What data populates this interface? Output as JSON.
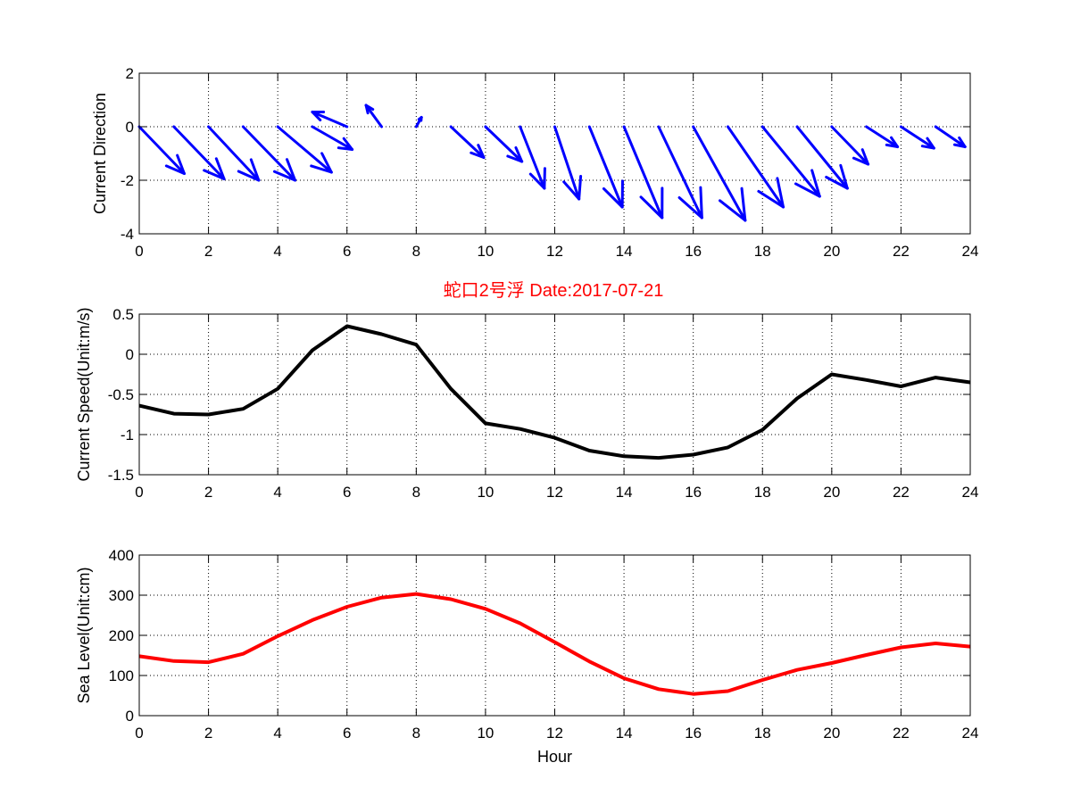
{
  "figure": {
    "title": "蛇口2号浮   Date:2017-07-21",
    "title_color": "#ff0000"
  },
  "chart_data": [
    {
      "type": "quiver",
      "name": "current-direction",
      "ylabel": "Current Direction",
      "xlabel": "",
      "xlim": [
        0,
        24
      ],
      "ylim": [
        -4,
        2
      ],
      "xticks": [
        "0",
        "2",
        "4",
        "6",
        "8",
        "10",
        "12",
        "14",
        "16",
        "18",
        "20",
        "22",
        "24"
      ],
      "yticks": [
        "-4",
        "-2",
        "0",
        "2"
      ],
      "grid": true,
      "color": "#0000ff",
      "arrows": [
        {
          "x": 0,
          "u": 1.3,
          "v": -1.75
        },
        {
          "x": 1,
          "u": 1.45,
          "v": -1.95
        },
        {
          "x": 2,
          "u": 1.45,
          "v": -2.0
        },
        {
          "x": 3,
          "u": 1.5,
          "v": -2.0
        },
        {
          "x": 4,
          "u": 1.55,
          "v": -1.7
        },
        {
          "x": 5,
          "u": 1.15,
          "v": -0.85
        },
        {
          "x": 6,
          "u": -1.0,
          "v": 0.55
        },
        {
          "x": 7,
          "u": -0.45,
          "v": 0.8
        },
        {
          "x": 8,
          "u": 0.15,
          "v": 0.35
        },
        {
          "x": 9,
          "u": 0.95,
          "v": -1.15
        },
        {
          "x": 10,
          "u": 1.05,
          "v": -1.3
        },
        {
          "x": 11,
          "u": 0.7,
          "v": -2.3
        },
        {
          "x": 12,
          "u": 0.7,
          "v": -2.7
        },
        {
          "x": 13,
          "u": 0.95,
          "v": -3.0
        },
        {
          "x": 14,
          "u": 1.1,
          "v": -3.4
        },
        {
          "x": 15,
          "u": 1.25,
          "v": -3.4
        },
        {
          "x": 16,
          "u": 1.5,
          "v": -3.5
        },
        {
          "x": 17,
          "u": 1.6,
          "v": -3.0
        },
        {
          "x": 18,
          "u": 1.65,
          "v": -2.6
        },
        {
          "x": 19,
          "u": 1.45,
          "v": -2.3
        },
        {
          "x": 20,
          "u": 1.05,
          "v": -1.4
        },
        {
          "x": 21,
          "u": 0.9,
          "v": -0.75
        },
        {
          "x": 22,
          "u": 0.95,
          "v": -0.8
        },
        {
          "x": 23,
          "u": 0.85,
          "v": -0.75
        }
      ]
    },
    {
      "type": "line",
      "name": "current-speed",
      "ylabel": "Current Speed(Unit:m/s)",
      "xlabel": "",
      "xlim": [
        0,
        24
      ],
      "ylim": [
        -1.5,
        0.5
      ],
      "xticks": [
        "0",
        "2",
        "4",
        "6",
        "8",
        "10",
        "12",
        "14",
        "16",
        "18",
        "20",
        "22",
        "24"
      ],
      "yticks": [
        "-1.5",
        "-1",
        "-0.5",
        "0",
        "0.5"
      ],
      "grid": true,
      "color": "#000000",
      "x": [
        0,
        1,
        2,
        3,
        4,
        5,
        6,
        7,
        8,
        9,
        10,
        11,
        12,
        13,
        14,
        15,
        16,
        17,
        18,
        19,
        20,
        21,
        22,
        23,
        24
      ],
      "y": [
        -0.64,
        -0.74,
        -0.75,
        -0.68,
        -0.43,
        0.05,
        0.35,
        0.25,
        0.12,
        -0.43,
        -0.86,
        -0.93,
        -1.04,
        -1.2,
        -1.27,
        -1.29,
        -1.25,
        -1.16,
        -0.94,
        -0.55,
        -0.25,
        -0.32,
        -0.4,
        -0.29,
        -0.35
      ]
    },
    {
      "type": "line",
      "name": "sea-level",
      "ylabel": "Sea Level(Unit:cm)",
      "xlabel": "Hour",
      "xlim": [
        0,
        24
      ],
      "ylim": [
        0,
        400
      ],
      "xticks": [
        "0",
        "2",
        "4",
        "6",
        "8",
        "10",
        "12",
        "14",
        "16",
        "18",
        "20",
        "22",
        "24"
      ],
      "yticks": [
        "0",
        "100",
        "200",
        "300",
        "400"
      ],
      "grid": true,
      "color": "#ff0000",
      "x": [
        0,
        1,
        2,
        3,
        4,
        5,
        6,
        7,
        8,
        9,
        10,
        11,
        12,
        13,
        14,
        15,
        16,
        17,
        18,
        19,
        20,
        21,
        22,
        23,
        24
      ],
      "y": [
        148,
        136,
        133,
        154,
        198,
        238,
        271,
        294,
        303,
        290,
        266,
        230,
        183,
        135,
        93,
        66,
        54,
        61,
        89,
        114,
        131,
        151,
        170,
        180,
        172
      ]
    }
  ]
}
